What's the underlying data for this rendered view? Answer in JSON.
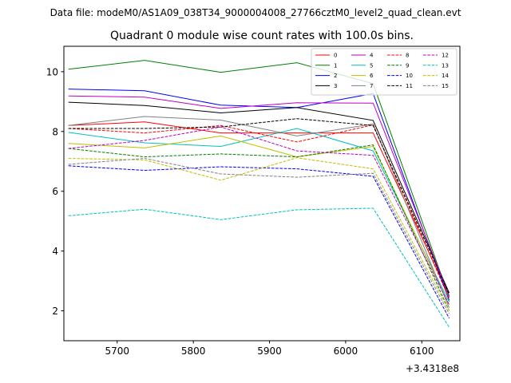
{
  "chart_data": {
    "type": "line",
    "suptitle": "Data file: modeM0/AS1A09_038T34_9000004008_27766cztM0_level2_quad_clean.evt",
    "title": "Quadrant 0 module wise count rates with 100.0s bins.",
    "xlabel": "",
    "ylabel": "",
    "x_offset_label": "+3.4318e8",
    "xlim": [
      5630,
      6150
    ],
    "ylim": [
      1.0,
      10.85
    ],
    "xticks": [
      5700,
      5800,
      5900,
      6000,
      6100
    ],
    "yticks": [
      2,
      4,
      6,
      8,
      10
    ],
    "xtick_labels": [
      "5700",
      "5800",
      "5900",
      "6000",
      "6100"
    ],
    "ytick_labels": [
      "2",
      "4",
      "6",
      "8",
      "10"
    ],
    "x": [
      5636,
      5736,
      5836,
      5936,
      6036,
      6136
    ],
    "grid": false,
    "legend_position": "top-right",
    "series": [
      {
        "name": "0",
        "color": "#ff0000",
        "dash": "solid",
        "values": [
          8.2,
          8.32,
          7.95,
          7.95,
          7.95,
          2.5
        ]
      },
      {
        "name": "1",
        "color": "#008000",
        "dash": "solid",
        "values": [
          10.08,
          10.38,
          9.98,
          10.3,
          9.6,
          2.45
        ]
      },
      {
        "name": "2",
        "color": "#0000ff",
        "dash": "solid",
        "values": [
          9.42,
          9.36,
          8.88,
          8.8,
          9.27,
          2.35
        ]
      },
      {
        "name": "3",
        "color": "#000000",
        "dash": "solid",
        "values": [
          8.98,
          8.87,
          8.62,
          8.8,
          8.37,
          2.6
        ]
      },
      {
        "name": "4",
        "color": "#bf00bf",
        "dash": "solid",
        "values": [
          9.19,
          9.15,
          8.77,
          8.96,
          8.95,
          2.5
        ]
      },
      {
        "name": "5",
        "color": "#00bfbf",
        "dash": "solid",
        "values": [
          7.97,
          7.62,
          7.5,
          8.1,
          7.35,
          2.3
        ]
      },
      {
        "name": "6",
        "color": "#bfbf00",
        "dash": "solid",
        "values": [
          7.6,
          7.45,
          7.85,
          7.15,
          7.5,
          2.2
        ]
      },
      {
        "name": "7",
        "color": "#808080",
        "dash": "solid",
        "values": [
          8.2,
          8.5,
          8.38,
          7.85,
          8.25,
          2.1
        ]
      },
      {
        "name": "8",
        "color": "#ff0000",
        "dash": "dashed",
        "values": [
          8.1,
          7.95,
          8.2,
          7.65,
          8.22,
          2.4
        ]
      },
      {
        "name": "9",
        "color": "#008000",
        "dash": "dashed",
        "values": [
          7.43,
          7.15,
          7.25,
          7.15,
          7.55,
          2.0
        ]
      },
      {
        "name": "10",
        "color": "#0000ff",
        "dash": "dashed",
        "values": [
          6.85,
          6.7,
          6.82,
          6.75,
          6.5,
          1.75
        ]
      },
      {
        "name": "11",
        "color": "#000000",
        "dash": "dashed",
        "values": [
          8.1,
          8.1,
          8.15,
          8.43,
          8.2,
          2.55
        ]
      },
      {
        "name": "12",
        "color": "#bf00bf",
        "dash": "dashed",
        "values": [
          7.43,
          7.7,
          8.15,
          7.35,
          7.2,
          2.2
        ]
      },
      {
        "name": "13",
        "color": "#00bfbf",
        "dash": "dashed",
        "values": [
          5.18,
          5.4,
          5.05,
          5.38,
          5.43,
          1.45
        ]
      },
      {
        "name": "14",
        "color": "#bfbf00",
        "dash": "dashed",
        "values": [
          7.1,
          7.05,
          6.37,
          7.12,
          6.75,
          2.0
        ]
      },
      {
        "name": "15",
        "color": "#808080",
        "dash": "dashed",
        "values": [
          6.9,
          7.1,
          6.58,
          6.47,
          6.6,
          1.9
        ]
      }
    ]
  }
}
